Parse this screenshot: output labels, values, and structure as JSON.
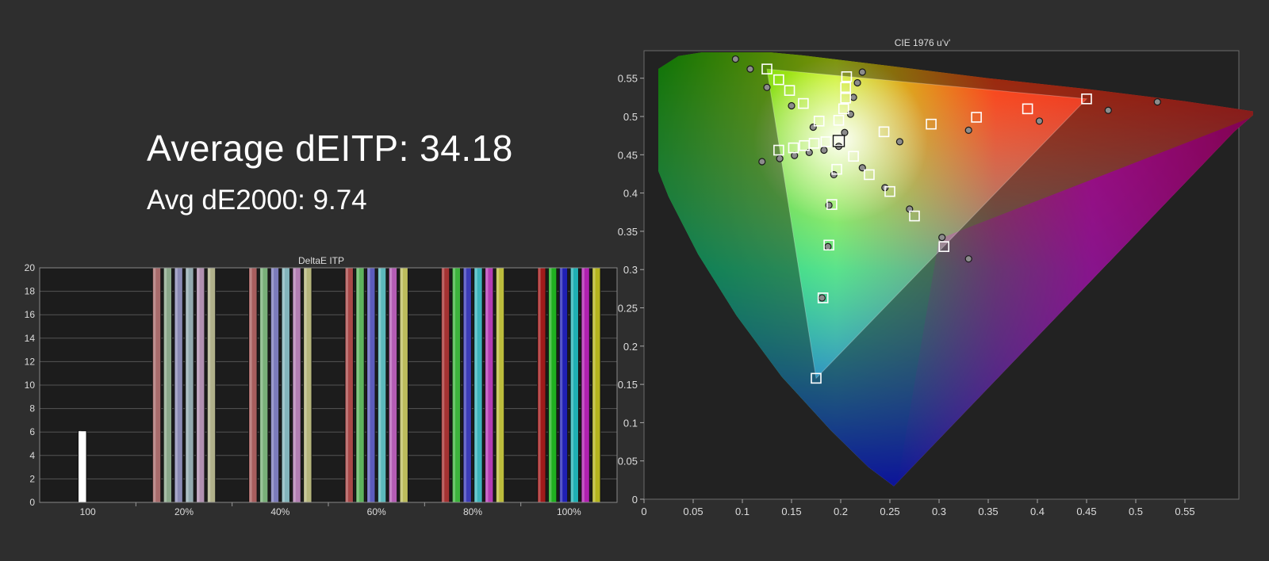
{
  "summary": {
    "average_deitp": "Average dEITP: 34.18",
    "avg_de2000": "Avg dE2000: 9.74"
  },
  "chart_data": [
    {
      "type": "bar",
      "title": "DeltaE ITP",
      "ylim": [
        0,
        20
      ],
      "yticks": [
        0,
        2,
        4,
        6,
        8,
        10,
        12,
        14,
        16,
        18,
        20
      ],
      "groups": [
        {
          "label": "100",
          "bars": [
            {
              "value": 6.1,
              "color": "#ffffff"
            }
          ]
        },
        {
          "label": "20%",
          "bars": [
            {
              "value": 20,
              "color": "#a86b6b"
            },
            {
              "value": 20,
              "color": "#8aa88a"
            },
            {
              "value": 20,
              "color": "#8a8ab4"
            },
            {
              "value": 20,
              "color": "#93aab0"
            },
            {
              "value": 20,
              "color": "#b08fb0"
            },
            {
              "value": 20,
              "color": "#b0b08a"
            }
          ]
        },
        {
          "label": "40%",
          "bars": [
            {
              "value": 20,
              "color": "#a85e5e"
            },
            {
              "value": 20,
              "color": "#79b079"
            },
            {
              "value": 20,
              "color": "#7b7bbb"
            },
            {
              "value": 20,
              "color": "#82b4bb"
            },
            {
              "value": 20,
              "color": "#b27eb2"
            },
            {
              "value": 20,
              "color": "#b5b57c"
            }
          ]
        },
        {
          "label": "60%",
          "bars": [
            {
              "value": 20,
              "color": "#a84848"
            },
            {
              "value": 20,
              "color": "#5db45d"
            },
            {
              "value": 20,
              "color": "#5c5cbc"
            },
            {
              "value": 20,
              "color": "#5cb8bc"
            },
            {
              "value": 20,
              "color": "#b45cb4"
            },
            {
              "value": 20,
              "color": "#bcbc5c"
            }
          ]
        },
        {
          "label": "80%",
          "bars": [
            {
              "value": 20,
              "color": "#a43232"
            },
            {
              "value": 20,
              "color": "#3cb43c"
            },
            {
              "value": 20,
              "color": "#3c3cb8"
            },
            {
              "value": 20,
              "color": "#3cb4bc"
            },
            {
              "value": 20,
              "color": "#b43cb4"
            },
            {
              "value": 20,
              "color": "#bcbc3c"
            }
          ]
        },
        {
          "label": "100%",
          "bars": [
            {
              "value": 20,
              "color": "#a01a1a"
            },
            {
              "value": 20,
              "color": "#20b020"
            },
            {
              "value": 20,
              "color": "#2020b4"
            },
            {
              "value": 20,
              "color": "#20b0b4"
            },
            {
              "value": 20,
              "color": "#b020b0"
            },
            {
              "value": 20,
              "color": "#b4b41e"
            }
          ]
        }
      ]
    },
    {
      "type": "scatter",
      "title": "CIE 1976 u'v'",
      "xlim": [
        0,
        0.6
      ],
      "ylim": [
        0,
        0.6
      ],
      "xticks": [
        0,
        0.05,
        0.1,
        0.15,
        0.2,
        0.25,
        0.3,
        0.35,
        0.4,
        0.45,
        0.5,
        0.55
      ],
      "yticks": [
        0,
        0.05,
        0.1,
        0.15,
        0.2,
        0.25,
        0.3,
        0.35,
        0.4,
        0.45,
        0.5,
        0.55
      ],
      "tick_labels": [
        "0",
        "0.05",
        "0.1",
        "0.15",
        "0.2",
        "0.25",
        "0.3",
        "0.35",
        "0.4",
        "0.45",
        "0.5",
        "0.55"
      ],
      "gamut_triangle": [
        [
          0.125,
          0.562
        ],
        [
          0.45,
          0.523
        ],
        [
          0.175,
          0.158
        ]
      ],
      "white_point": [
        0.198,
        0.468
      ],
      "targets": [
        [
          0.125,
          0.562
        ],
        [
          0.137,
          0.548
        ],
        [
          0.148,
          0.534
        ],
        [
          0.162,
          0.517
        ],
        [
          0.178,
          0.494
        ],
        [
          0.206,
          0.552
        ],
        [
          0.205,
          0.538
        ],
        [
          0.205,
          0.524
        ],
        [
          0.203,
          0.51
        ],
        [
          0.198,
          0.495
        ],
        [
          0.137,
          0.456
        ],
        [
          0.152,
          0.459
        ],
        [
          0.163,
          0.462
        ],
        [
          0.173,
          0.465
        ],
        [
          0.185,
          0.467
        ],
        [
          0.198,
          0.468
        ],
        [
          0.213,
          0.448
        ],
        [
          0.196,
          0.431
        ],
        [
          0.229,
          0.424
        ],
        [
          0.25,
          0.402
        ],
        [
          0.191,
          0.385
        ],
        [
          0.188,
          0.332
        ],
        [
          0.182,
          0.263
        ],
        [
          0.175,
          0.158
        ],
        [
          0.244,
          0.48
        ],
        [
          0.292,
          0.49
        ],
        [
          0.338,
          0.499
        ],
        [
          0.39,
          0.51
        ],
        [
          0.45,
          0.523
        ],
        [
          0.275,
          0.37
        ],
        [
          0.305,
          0.33
        ]
      ],
      "measured": [
        [
          0.093,
          0.575
        ],
        [
          0.108,
          0.562
        ],
        [
          0.125,
          0.538
        ],
        [
          0.15,
          0.514
        ],
        [
          0.172,
          0.486
        ],
        [
          0.183,
          0.456
        ],
        [
          0.198,
          0.461
        ],
        [
          0.204,
          0.479
        ],
        [
          0.21,
          0.503
        ],
        [
          0.213,
          0.525
        ],
        [
          0.217,
          0.544
        ],
        [
          0.222,
          0.558
        ],
        [
          0.12,
          0.441
        ],
        [
          0.138,
          0.445
        ],
        [
          0.153,
          0.449
        ],
        [
          0.168,
          0.453
        ],
        [
          0.193,
          0.424
        ],
        [
          0.222,
          0.433
        ],
        [
          0.245,
          0.407
        ],
        [
          0.26,
          0.467
        ],
        [
          0.33,
          0.482
        ],
        [
          0.402,
          0.494
        ],
        [
          0.472,
          0.508
        ],
        [
          0.522,
          0.519
        ],
        [
          0.188,
          0.384
        ],
        [
          0.187,
          0.33
        ],
        [
          0.181,
          0.263
        ],
        [
          0.27,
          0.379
        ],
        [
          0.303,
          0.342
        ],
        [
          0.33,
          0.314
        ]
      ]
    }
  ]
}
